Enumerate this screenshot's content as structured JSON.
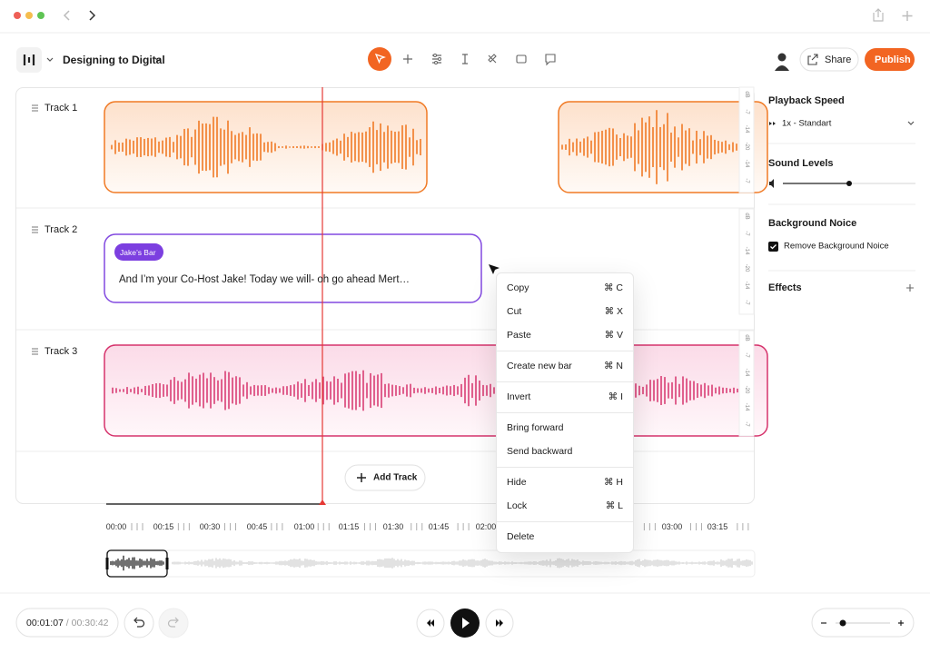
{
  "header": {
    "project_title": "Designing to Digital",
    "share": "Share",
    "publish": "Publish"
  },
  "tracks": [
    {
      "name": "Track 1"
    },
    {
      "name": "Track 2",
      "clip": {
        "tag": "Jake’s Bar",
        "text": "And I’m your Co-Host Jake! Today we will- oh go ahead Mert…"
      }
    },
    {
      "name": "Track 3"
    }
  ],
  "level_meter": [
    "dB",
    "-7",
    "-14",
    "-20",
    "-14",
    "-7"
  ],
  "add_track": "Add Track",
  "timeline": [
    "00:00",
    "00:15",
    "00:30",
    "00:45",
    "01:00",
    "01:15",
    "01:30",
    "01:45",
    "02:00",
    "03:00",
    "03:15"
  ],
  "context_menu": {
    "groups": [
      [
        {
          "label": "Copy",
          "shortcut": "⌘ C"
        },
        {
          "label": "Cut",
          "shortcut": "⌘ X"
        },
        {
          "label": "Paste",
          "shortcut": "⌘ V"
        }
      ],
      [
        {
          "label": "Create new bar",
          "shortcut": "⌘ N"
        }
      ],
      [
        {
          "label": "Invert",
          "shortcut": "⌘ I"
        }
      ],
      [
        {
          "label": "Bring forward"
        },
        {
          "label": "Send backward"
        }
      ],
      [
        {
          "label": "Hide",
          "shortcut": "⌘ H"
        },
        {
          "label": "Lock",
          "shortcut": "⌘ L"
        }
      ],
      [
        {
          "label": "Delete"
        }
      ]
    ]
  },
  "sidebar": {
    "playback_speed": {
      "title": "Playback Speed",
      "value": "1x - Standart"
    },
    "sound_levels": {
      "title": "Sound Levels"
    },
    "background_noise": {
      "title": "Background Noice",
      "option": "Remove Background Noice"
    },
    "effects": {
      "title": "Effects"
    }
  },
  "footer": {
    "current_time": "00:01:07",
    "total_time": "/ 00:30:42"
  }
}
